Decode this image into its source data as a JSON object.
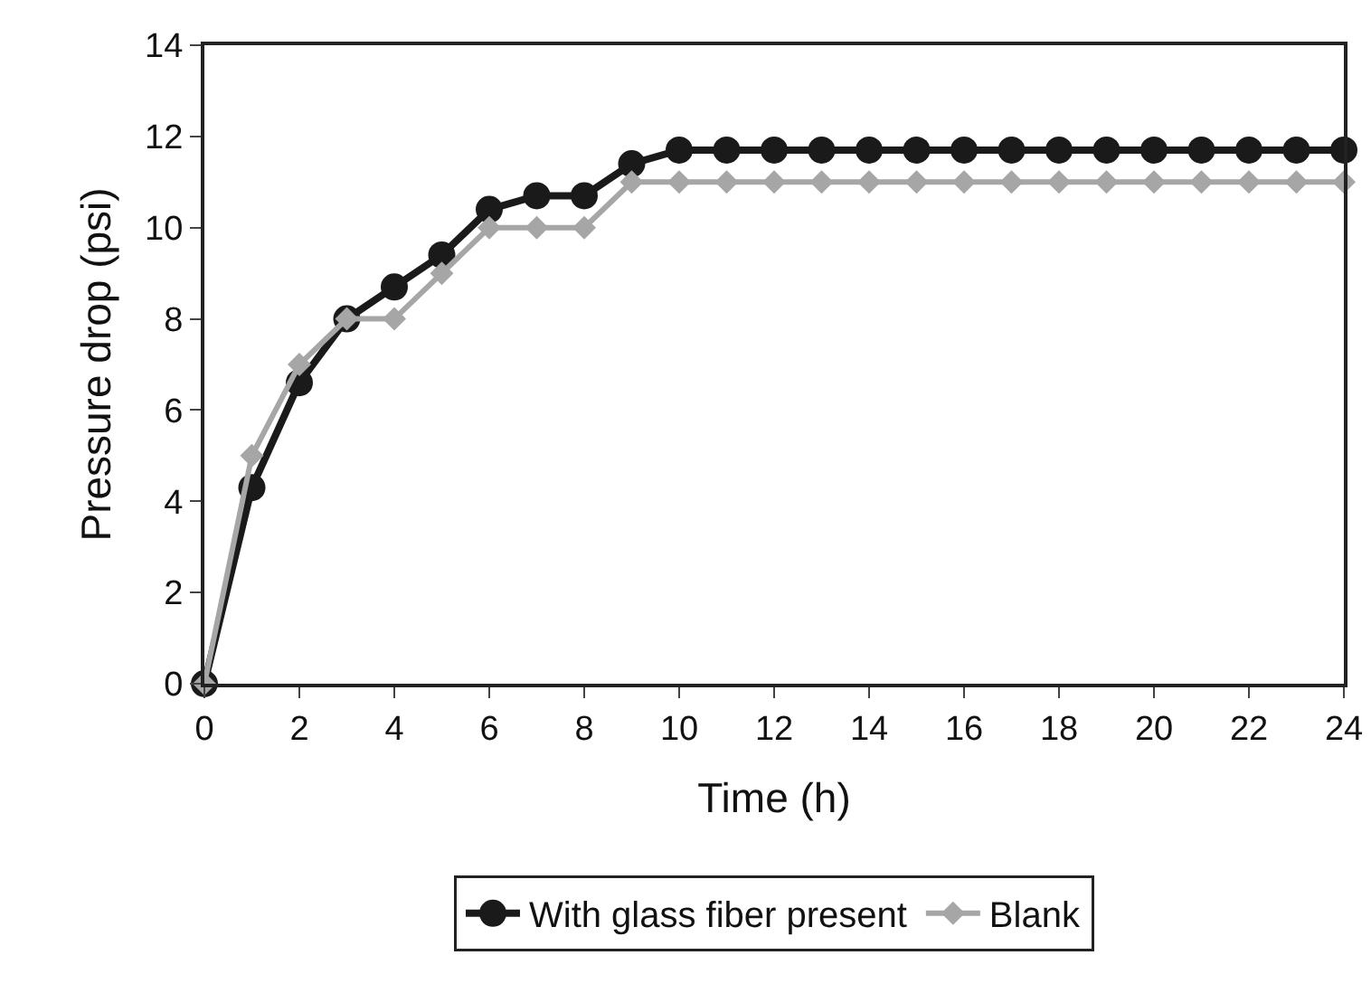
{
  "chart_data": {
    "type": "line",
    "xlabel": "Time (h)",
    "ylabel": "Pressure drop (psi)",
    "x": [
      0,
      1,
      2,
      3,
      4,
      5,
      6,
      7,
      8,
      9,
      10,
      11,
      12,
      13,
      14,
      15,
      16,
      17,
      18,
      19,
      20,
      21,
      22,
      23,
      24
    ],
    "series": [
      {
        "name": "With glass fiber present",
        "color": "#1a1a1a",
        "marker": "circle",
        "values": [
          0,
          4.3,
          6.6,
          8,
          8.7,
          9.4,
          10.4,
          10.7,
          10.7,
          11.4,
          11.7,
          11.7,
          11.7,
          11.7,
          11.7,
          11.7,
          11.7,
          11.7,
          11.7,
          11.7,
          11.7,
          11.7,
          11.7,
          11.7,
          11.7
        ]
      },
      {
        "name": "Blank",
        "color": "#a6a6a6",
        "marker": "diamond",
        "values": [
          0,
          5,
          7,
          8,
          8,
          9,
          10,
          10,
          10,
          11,
          11,
          11,
          11,
          11,
          11,
          11,
          11,
          11,
          11,
          11,
          11,
          11,
          11,
          11,
          11
        ]
      }
    ],
    "xlim": [
      0,
      24
    ],
    "xticks": [
      0,
      2,
      4,
      6,
      8,
      10,
      12,
      14,
      16,
      18,
      20,
      22,
      24
    ],
    "ylim": [
      0,
      14
    ],
    "yticks": [
      0,
      2,
      4,
      6,
      8,
      10,
      12,
      14
    ],
    "grid": false,
    "legend": "bottom",
    "line_style": "solid"
  }
}
